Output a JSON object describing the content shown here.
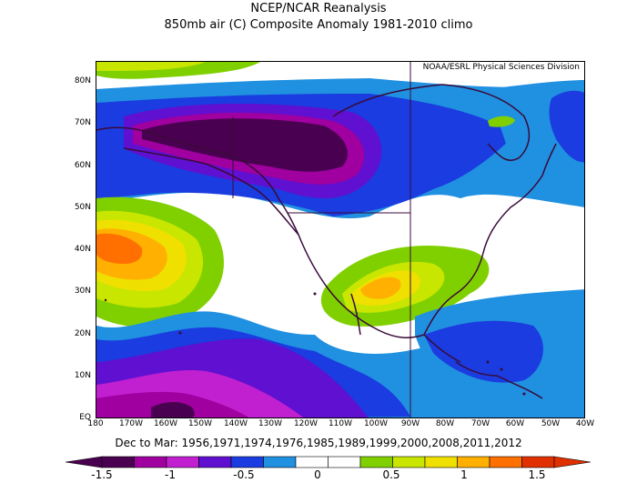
{
  "title_line1": "NCEP/NCAR Reanalysis",
  "title_line2": "850mb air (C) Composite Anomaly 1981-2010 climo",
  "credit": "NOAA/ESRL Physical Sciences Division",
  "lat_labels": [
    "80N",
    "70N",
    "60N",
    "50N",
    "40N",
    "30N",
    "20N",
    "10N",
    "EQ"
  ],
  "lon_labels": [
    "180",
    "170W",
    "160W",
    "150W",
    "140W",
    "130W",
    "120W",
    "110W",
    "100W",
    "90W",
    "80W",
    "70W",
    "60W",
    "50W",
    "40W"
  ],
  "caption": "Dec to Mar: 1956,1971,1974,1976,1985,1989,1999,2000,2008,2011,2012",
  "colorbar": {
    "labels": [
      "-1.5",
      "-1",
      "-0.5",
      "0",
      "0.5",
      "1",
      "1.5"
    ],
    "colors": [
      "#4a0050",
      "#a000a0",
      "#c020d0",
      "#6010d0",
      "#1a3ce0",
      "#2090e0",
      "#ffffff",
      "#ffffff",
      "#80d000",
      "#c8e600",
      "#f0e000",
      "#ffb000",
      "#ff7000",
      "#e03000"
    ]
  },
  "anomaly_colors": {
    "deep_purple": "#4a0050",
    "magenta": "#a000a0",
    "purple": "#6010d0",
    "blue": "#1a3ce0",
    "light_blue": "#2090e0",
    "neutral": "#ffffff",
    "green": "#80d000",
    "yellow_green": "#c8e600",
    "yellow": "#f0e000",
    "orange": "#ffb000",
    "dark_orange": "#ff7000"
  }
}
